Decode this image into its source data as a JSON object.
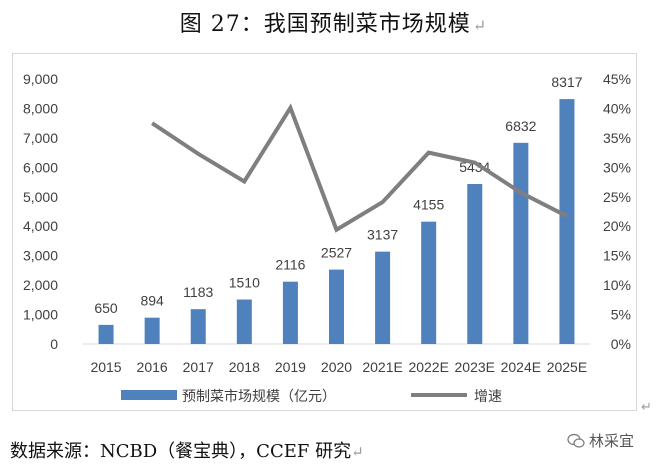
{
  "page": {
    "title": "图 27：我国预制菜市场规模",
    "paragraph_mark": "↵",
    "source": "数据来源：NCBD（餐宝典），CCEF 研究",
    "watermark": "林采宜"
  },
  "chart_data": {
    "type": "bar",
    "title": "",
    "categories": [
      "2015",
      "2016",
      "2017",
      "2018",
      "2019",
      "2020",
      "2021E",
      "2022E",
      "2023E",
      "2024E",
      "2025E"
    ],
    "series": [
      {
        "name": "预制菜市场规模（亿元）",
        "type": "bar",
        "axis": "left",
        "color": "#4f81bd",
        "values": [
          650,
          894,
          1183,
          1510,
          2116,
          2527,
          3137,
          4155,
          5434,
          6832,
          8317
        ]
      },
      {
        "name": "增速",
        "type": "line",
        "axis": "right",
        "color": "#7f7f7f",
        "values": [
          null,
          37.5,
          32.3,
          27.6,
          40.1,
          19.4,
          24.1,
          32.5,
          30.8,
          25.7,
          21.7
        ]
      }
    ],
    "y_left": {
      "lim": [
        0,
        9000
      ],
      "ticks": [
        "0",
        "1,000",
        "2,000",
        "3,000",
        "4,000",
        "5,000",
        "6,000",
        "7,000",
        "8,000",
        "9,000"
      ]
    },
    "y_right": {
      "lim": [
        0,
        45
      ],
      "ticks": [
        "0%",
        "5%",
        "10%",
        "15%",
        "20%",
        "25%",
        "30%",
        "35%",
        "40%",
        "45%"
      ]
    },
    "legend": {
      "position": "bottom",
      "labels": [
        "预制菜市场规模（亿元）",
        "增速"
      ]
    },
    "grid": false,
    "data_labels": [
      "650",
      "894",
      "1183",
      "1510",
      "2116",
      "2527",
      "3137",
      "4155",
      "5434",
      "6832",
      "8317"
    ]
  }
}
